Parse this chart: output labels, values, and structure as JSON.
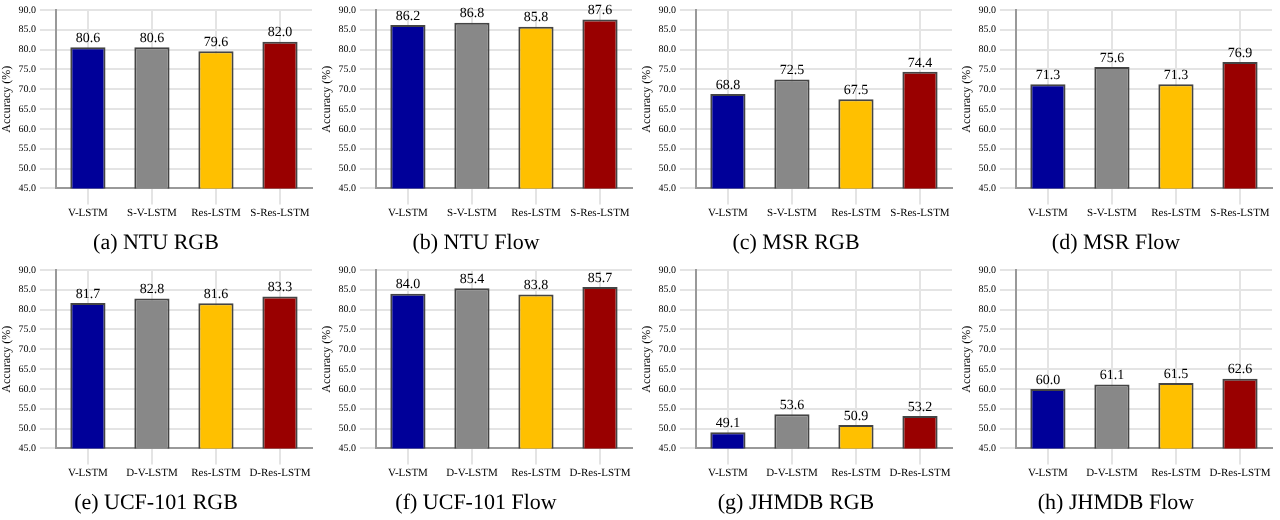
{
  "chart_data": [
    {
      "type": "bar",
      "title": "(a) NTU RGB",
      "ylabel": "Accuracy (%)",
      "categories": [
        "V-LSTM",
        "S-V-LSTM",
        "Res-LSTM",
        "S-Res-LSTM"
      ],
      "values": [
        80.6,
        80.6,
        79.6,
        82.0
      ],
      "value_labels": [
        "80.6",
        "80.6",
        "79.6",
        "82.0"
      ],
      "colors": [
        "#000099",
        "#888888",
        "#ffc000",
        "#990000"
      ],
      "ylim": [
        45,
        90
      ],
      "yticks": [
        {
          "value": 45,
          "label": "45.0"
        },
        {
          "value": 50,
          "label": "50.0"
        },
        {
          "value": 55,
          "label": "55.0"
        },
        {
          "value": 60,
          "label": "60.0"
        },
        {
          "value": 65,
          "label": "65.0"
        },
        {
          "value": 70,
          "label": "70.0"
        },
        {
          "value": 75,
          "label": "75.0"
        },
        {
          "value": 80,
          "label": "80.0"
        },
        {
          "value": 85,
          "label": "85.0"
        },
        {
          "value": 90,
          "label": "90.0"
        }
      ],
      "grid": true
    },
    {
      "type": "bar",
      "title": "(b) NTU Flow",
      "ylabel": "Accuracy (%)",
      "categories": [
        "V-LSTM",
        "S-V-LSTM",
        "Res-LSTM",
        "S-Res-LSTM"
      ],
      "values": [
        86.2,
        86.8,
        85.8,
        87.6
      ],
      "value_labels": [
        "86.2",
        "86.8",
        "85.8",
        "87.6"
      ],
      "colors": [
        "#000099",
        "#888888",
        "#ffc000",
        "#990000"
      ],
      "ylim": [
        45,
        90
      ],
      "yticks": [
        {
          "value": 45,
          "label": "45.0"
        },
        {
          "value": 50,
          "label": "50.0"
        },
        {
          "value": 55,
          "label": "55.0"
        },
        {
          "value": 60,
          "label": "60.0"
        },
        {
          "value": 65,
          "label": "65.0"
        },
        {
          "value": 70,
          "label": "70.0"
        },
        {
          "value": 75,
          "label": "75.0"
        },
        {
          "value": 80,
          "label": "80.0"
        },
        {
          "value": 85,
          "label": "85.0"
        },
        {
          "value": 90,
          "label": "90.0"
        }
      ],
      "grid": true
    },
    {
      "type": "bar",
      "title": "(c) MSR RGB",
      "ylabel": "Accuracy (%)",
      "categories": [
        "V-LSTM",
        "S-V-LSTM",
        "Res-LSTM",
        "S-Res-LSTM"
      ],
      "values": [
        68.8,
        72.5,
        67.5,
        74.4
      ],
      "value_labels": [
        "68.8",
        "72.5",
        "67.5",
        "74.4"
      ],
      "colors": [
        "#000099",
        "#888888",
        "#ffc000",
        "#990000"
      ],
      "ylim": [
        45,
        90
      ],
      "yticks": [
        {
          "value": 45,
          "label": "45.0"
        },
        {
          "value": 50,
          "label": "50.0"
        },
        {
          "value": 55,
          "label": "55.0"
        },
        {
          "value": 60,
          "label": "60.0"
        },
        {
          "value": 65,
          "label": "65.0"
        },
        {
          "value": 70,
          "label": "70.0"
        },
        {
          "value": 75,
          "label": "75.0"
        },
        {
          "value": 80,
          "label": "80.0"
        },
        {
          "value": 85,
          "label": "85.0"
        },
        {
          "value": 90,
          "label": "90.0"
        }
      ],
      "grid": true
    },
    {
      "type": "bar",
      "title": "(d) MSR Flow",
      "ylabel": "Accuracy (%)",
      "categories": [
        "V-LSTM",
        "S-V-LSTM",
        "Res-LSTM",
        "S-Res-LSTM"
      ],
      "values": [
        71.3,
        75.6,
        71.3,
        76.9
      ],
      "value_labels": [
        "71.3",
        "75.6",
        "71.3",
        "76.9"
      ],
      "colors": [
        "#000099",
        "#888888",
        "#ffc000",
        "#990000"
      ],
      "ylim": [
        45,
        90
      ],
      "yticks": [
        {
          "value": 45,
          "label": "45.0"
        },
        {
          "value": 50,
          "label": "50.0"
        },
        {
          "value": 55,
          "label": "55.0"
        },
        {
          "value": 60,
          "label": "60.0"
        },
        {
          "value": 65,
          "label": "65.0"
        },
        {
          "value": 70,
          "label": "70.0"
        },
        {
          "value": 75,
          "label": "75.0"
        },
        {
          "value": 80,
          "label": "80.0"
        },
        {
          "value": 85,
          "label": "85.0"
        },
        {
          "value": 90,
          "label": "90.0"
        }
      ],
      "grid": true
    },
    {
      "type": "bar",
      "title": "(e) UCF-101 RGB",
      "ylabel": "Accuracy (%)",
      "categories": [
        "V-LSTM",
        "D-V-LSTM",
        "Res-LSTM",
        "D-Res-LSTM"
      ],
      "values": [
        81.7,
        82.8,
        81.6,
        83.3
      ],
      "value_labels": [
        "81.7",
        "82.8",
        "81.6",
        "83.3"
      ],
      "colors": [
        "#000099",
        "#888888",
        "#ffc000",
        "#990000"
      ],
      "ylim": [
        45,
        90
      ],
      "yticks": [
        {
          "value": 45,
          "label": "45.0"
        },
        {
          "value": 50,
          "label": "50.0"
        },
        {
          "value": 55,
          "label": "55.0"
        },
        {
          "value": 60,
          "label": "60.0"
        },
        {
          "value": 65,
          "label": "65.0"
        },
        {
          "value": 70,
          "label": "70.0"
        },
        {
          "value": 75,
          "label": "75.0"
        },
        {
          "value": 80,
          "label": "80.0"
        },
        {
          "value": 85,
          "label": "85.0"
        },
        {
          "value": 90,
          "label": "90.0"
        }
      ],
      "grid": true
    },
    {
      "type": "bar",
      "title": "(f) UCF-101 Flow",
      "ylabel": "Accuracy (%)",
      "categories": [
        "V-LSTM",
        "D-V-LSTM",
        "Res-LSTM",
        "D-Res-LSTM"
      ],
      "values": [
        84.0,
        85.4,
        83.8,
        85.7
      ],
      "value_labels": [
        "84.0",
        "85.4",
        "83.8",
        "85.7"
      ],
      "colors": [
        "#000099",
        "#888888",
        "#ffc000",
        "#990000"
      ],
      "ylim": [
        45,
        90
      ],
      "yticks": [
        {
          "value": 45,
          "label": "45.0"
        },
        {
          "value": 50,
          "label": "50.0"
        },
        {
          "value": 55,
          "label": "55.0"
        },
        {
          "value": 60,
          "label": "60.0"
        },
        {
          "value": 65,
          "label": "65.0"
        },
        {
          "value": 70,
          "label": "70.0"
        },
        {
          "value": 75,
          "label": "75.0"
        },
        {
          "value": 80,
          "label": "80.0"
        },
        {
          "value": 85,
          "label": "85.0"
        },
        {
          "value": 90,
          "label": "90.0"
        }
      ],
      "grid": true
    },
    {
      "type": "bar",
      "title": "(g) JHMDB RGB",
      "ylabel": "Accuracy (%)",
      "categories": [
        "V-LSTM",
        "D-V-LSTM",
        "Res-LSTM",
        "D-Res-LSTM"
      ],
      "values": [
        49.1,
        53.6,
        50.9,
        53.2
      ],
      "value_labels": [
        "49.1",
        "53.6",
        "50.9",
        "53.2"
      ],
      "colors": [
        "#000099",
        "#888888",
        "#ffc000",
        "#990000"
      ],
      "ylim": [
        45,
        90
      ],
      "yticks": [
        {
          "value": 45,
          "label": "45.0"
        },
        {
          "value": 50,
          "label": "50.0"
        },
        {
          "value": 55,
          "label": "55.0"
        },
        {
          "value": 60,
          "label": "60.0"
        },
        {
          "value": 65,
          "label": "65.0"
        },
        {
          "value": 70,
          "label": "70.0"
        },
        {
          "value": 75,
          "label": "75.0"
        },
        {
          "value": 80,
          "label": "80.0"
        },
        {
          "value": 85,
          "label": "85.0"
        },
        {
          "value": 90,
          "label": "90.0"
        }
      ],
      "grid": true
    },
    {
      "type": "bar",
      "title": "(h) JHMDB Flow",
      "ylabel": "Accuracy (%)",
      "categories": [
        "V-LSTM",
        "D-V-LSTM",
        "Res-LSTM",
        "D-Res-LSTM"
      ],
      "values": [
        60.0,
        61.1,
        61.5,
        62.6
      ],
      "value_labels": [
        "60.0",
        "61.1",
        "61.5",
        "62.6"
      ],
      "colors": [
        "#000099",
        "#888888",
        "#ffc000",
        "#990000"
      ],
      "ylim": [
        45,
        90
      ],
      "yticks": [
        {
          "value": 45,
          "label": "45.0"
        },
        {
          "value": 50,
          "label": "50.0"
        },
        {
          "value": 55,
          "label": "55.0"
        },
        {
          "value": 60,
          "label": "60.0"
        },
        {
          "value": 65,
          "label": "65.0"
        },
        {
          "value": 70,
          "label": "70.0"
        },
        {
          "value": 75,
          "label": "75.0"
        },
        {
          "value": 80,
          "label": "80.0"
        },
        {
          "value": 85,
          "label": "85.0"
        },
        {
          "value": 90,
          "label": "90.0"
        }
      ],
      "grid": true
    }
  ]
}
